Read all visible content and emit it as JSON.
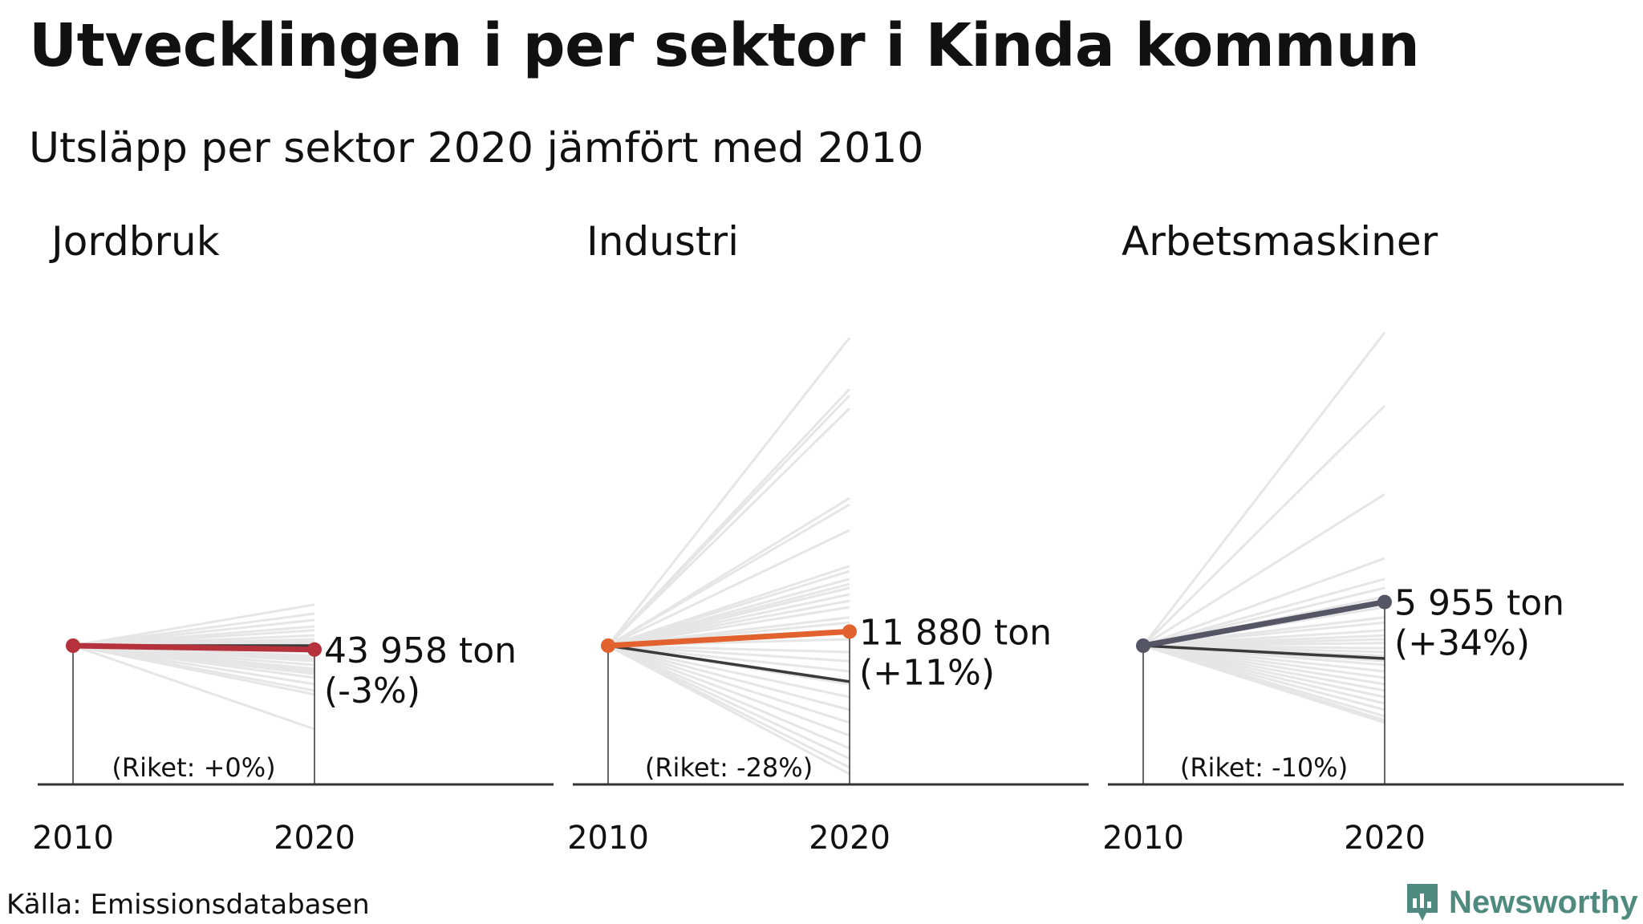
{
  "title": "Utvecklingen i per sektor i Kinda kommun",
  "subtitle": "Utsläpp per sektor 2020 jämfört med 2010",
  "source": "Källa: Emissionsdatabasen",
  "logo": {
    "text": "Newsworthy",
    "icon": "newsworthy-logo-icon",
    "color": "#4e8a7e"
  },
  "chart_data": [
    {
      "type": "line",
      "title": "Jordbruk",
      "x": [
        "2010",
        "2020"
      ],
      "color": "#b5323c",
      "municipality_change_pct": -3,
      "municipality_value_2020": "43 958 ton",
      "municipality_change_label": "(-3%)",
      "national_change_pct": 0,
      "riket_label": "(Riket: +0%)",
      "other_municipalities_change_pct": [
        32,
        25,
        20,
        15,
        12,
        8,
        5,
        3,
        1,
        -2,
        -5,
        -8,
        -10,
        -12,
        -15,
        -18,
        -20,
        -22,
        -25,
        -30,
        -35,
        -38,
        -65
      ]
    },
    {
      "type": "line",
      "title": "Industri",
      "x": [
        "2010",
        "2020"
      ],
      "color": "#e2622f",
      "municipality_change_pct": 11,
      "municipality_value_2020": "11 880 ton",
      "municipality_change_label": "(+11%)",
      "national_change_pct": -28,
      "riket_label": "(Riket: -28%)",
      "other_municipalities_change_pct": [
        240,
        200,
        195,
        185,
        115,
        110,
        90,
        62,
        58,
        52,
        48,
        45,
        40,
        35,
        30,
        22,
        18,
        12,
        5,
        -5,
        -12,
        -20,
        -30,
        -40,
        -50,
        -60,
        -70,
        -80,
        -88,
        -95,
        -100
      ]
    },
    {
      "type": "line",
      "title": "Arbetsmaskiner",
      "x": [
        "2010",
        "2020"
      ],
      "color": "#555566",
      "municipality_change_pct": 34,
      "municipality_value_2020": "5 955 ton",
      "municipality_change_label": "(+34%)",
      "national_change_pct": -10,
      "riket_label": "(Riket: -10%)",
      "other_municipalities_change_pct": [
        244,
        187,
        118,
        68,
        52,
        45,
        38,
        30,
        22,
        18,
        12,
        8,
        5,
        2,
        -2,
        -5,
        -8,
        -12,
        -15,
        -20,
        -25,
        -30,
        -35,
        -40,
        -45,
        -50,
        -55,
        -58,
        -60
      ]
    }
  ]
}
